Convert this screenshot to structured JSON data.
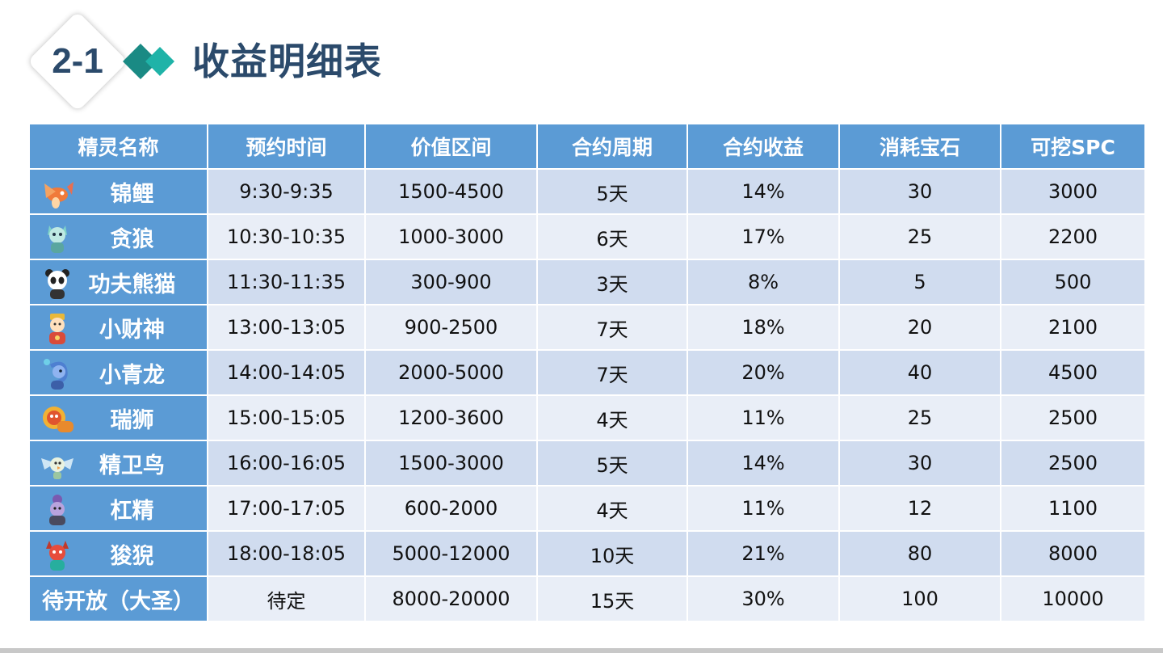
{
  "header": {
    "badge": "2-1",
    "title": "收益明细表"
  },
  "table": {
    "columns": [
      "精灵名称",
      "预约时间",
      "价值区间",
      "合约周期",
      "合约收益",
      "消耗宝石",
      "可挖SPC"
    ],
    "rows": [
      {
        "name": "锦鲤",
        "icon": "koi-sprite-icon",
        "time": "9:30-9:35",
        "range": "1500-4500",
        "period": "5天",
        "yield": "14%",
        "gems": "30",
        "spc": "3000"
      },
      {
        "name": "贪狼",
        "icon": "wolf-sprite-icon",
        "time": "10:30-10:35",
        "range": "1000-3000",
        "period": "6天",
        "yield": "17%",
        "gems": "25",
        "spc": "2200"
      },
      {
        "name": "功夫熊猫",
        "icon": "panda-sprite-icon",
        "time": "11:30-11:35",
        "range": "300-900",
        "period": "3天",
        "yield": "8%",
        "gems": "5",
        "spc": "500"
      },
      {
        "name": "小财神",
        "icon": "fortune-god-sprite-icon",
        "time": "13:00-13:05",
        "range": "900-2500",
        "period": "7天",
        "yield": "18%",
        "gems": "20",
        "spc": "2100"
      },
      {
        "name": "小青龙",
        "icon": "dragon-sprite-icon",
        "time": "14:00-14:05",
        "range": "2000-5000",
        "period": "7天",
        "yield": "20%",
        "gems": "40",
        "spc": "4500"
      },
      {
        "name": "瑞狮",
        "icon": "lion-sprite-icon",
        "time": "15:00-15:05",
        "range": "1200-3600",
        "period": "4天",
        "yield": "11%",
        "gems": "25",
        "spc": "2500"
      },
      {
        "name": "精卫鸟",
        "icon": "bird-sprite-icon",
        "time": "16:00-16:05",
        "range": "1500-3000",
        "period": "5天",
        "yield": "14%",
        "gems": "30",
        "spc": "2500"
      },
      {
        "name": "杠精",
        "icon": "imp-sprite-icon",
        "time": "17:00-17:05",
        "range": "600-2000",
        "period": "4天",
        "yield": "11%",
        "gems": "12",
        "spc": "1100"
      },
      {
        "name": "狻猊",
        "icon": "suanni-sprite-icon",
        "time": "18:00-18:05",
        "range": "5000-12000",
        "period": "10天",
        "yield": "21%",
        "gems": "80",
        "spc": "8000"
      },
      {
        "name": "待开放（大圣）",
        "icon": "",
        "time": "待定",
        "range": "8000-20000",
        "period": "15天",
        "yield": "30%",
        "gems": "100",
        "spc": "10000"
      }
    ]
  },
  "colors": {
    "title": "#2b4a6b",
    "header_bg": "#5b9bd5",
    "row_dark": "#d0dcef",
    "row_light": "#e9eef7",
    "diamond_dark": "#1a8a84",
    "diamond_light": "#1fb3a8"
  }
}
